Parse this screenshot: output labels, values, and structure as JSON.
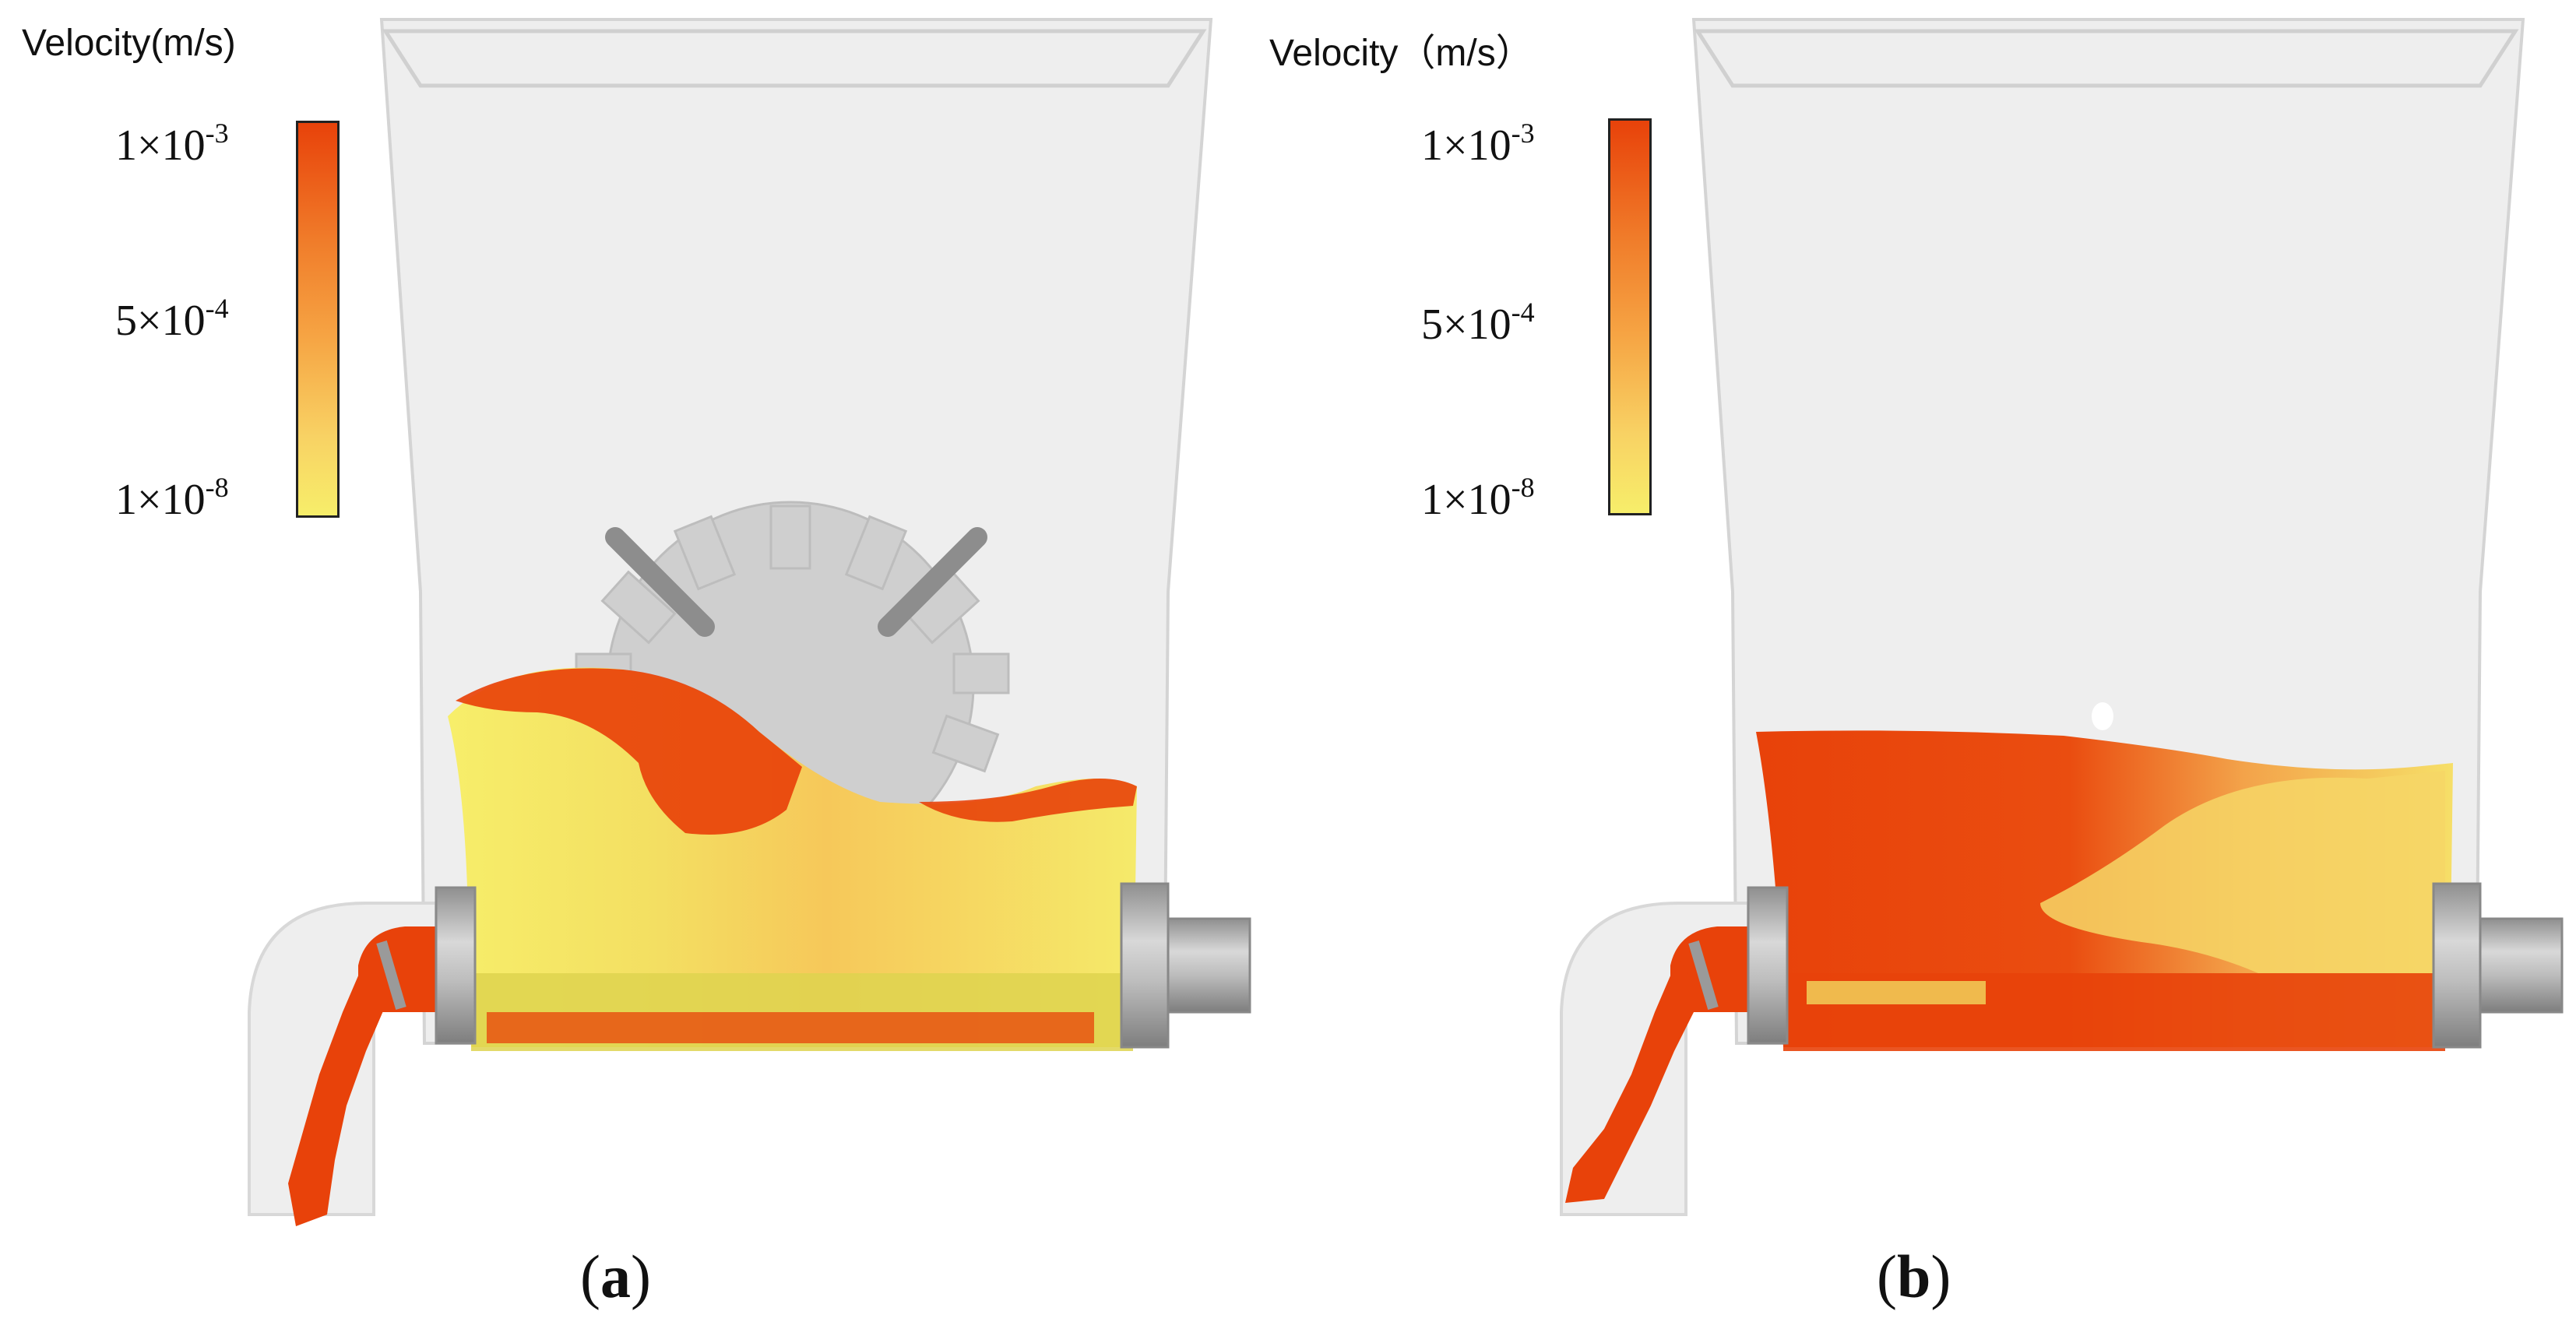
{
  "panels": [
    {
      "id": "a",
      "caption_open": "(",
      "caption_letter": "a",
      "caption_close": ")",
      "legend": {
        "title": "Velocity(m/s)",
        "ticks": [
          {
            "base": "1×10",
            "exp": "-3"
          },
          {
            "base": "5×10",
            "exp": "-4"
          },
          {
            "base": "1×10",
            "exp": "-8"
          }
        ]
      }
    },
    {
      "id": "b",
      "caption_open": "(",
      "caption_letter": "b",
      "caption_close": ")",
      "legend": {
        "title": "Velocity（m/s）",
        "ticks": [
          {
            "base": "1×10",
            "exp": "-3"
          },
          {
            "base": "5×10",
            "exp": "-4"
          },
          {
            "base": "1×10",
            "exp": "-8"
          }
        ]
      }
    }
  ],
  "colors": {
    "high": "#e8420a",
    "mid": "#f6a544",
    "low": "#f7ee6a",
    "hopper": "#e9e9e9",
    "hopper_edge": "#d6d6d6",
    "metal": "#b9b9b9"
  }
}
